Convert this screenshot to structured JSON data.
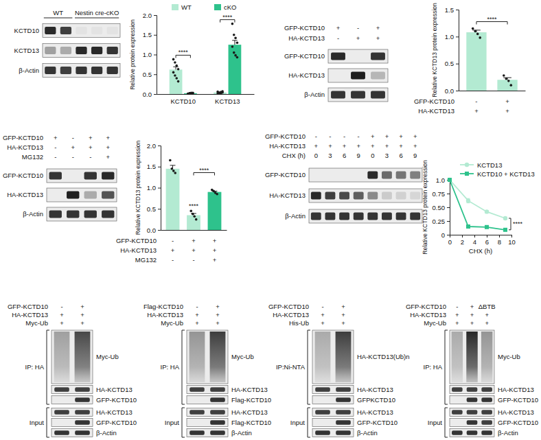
{
  "chart_data": [
    {
      "type": "bar",
      "y_label": "Relative protein expression",
      "categories": [
        "KCTD10",
        "KCTD13"
      ],
      "series": [
        {
          "name": "WT",
          "color": "#b3ead2",
          "values": [
            0.62,
            0.04
          ],
          "errors": [
            0.07,
            0.01
          ],
          "points": [
            [
              0.88,
              0.8,
              0.72,
              0.63,
              0.55,
              0.47,
              0.4,
              0.32
            ],
            [
              0.02,
              0.03,
              0.05,
              0.04,
              0.06,
              0.03,
              0.02,
              0.07
            ]
          ]
        },
        {
          "name": "cKO",
          "color": "#2ec28c",
          "values": [
            0.02,
            1.25
          ],
          "errors": [
            0.005,
            0.11
          ],
          "points": [
            [
              0.01,
              0.02,
              0.02,
              0.03,
              0.01,
              0.02,
              0.03,
              0.02
            ],
            [
              1.78,
              1.5,
              1.42,
              1.3,
              1.2,
              1.05,
              0.98,
              0.93
            ]
          ]
        }
      ],
      "ylim": [
        0,
        2
      ],
      "yticks": [
        {
          "value": 0,
          "label": "0.0"
        },
        0.5,
        {
          "value": 1,
          "label": "1.0"
        },
        1.5,
        {
          "value": 2,
          "label": "2.0"
        }
      ],
      "legend": "top",
      "annotations": [
        {
          "text": "****",
          "category": "KCTD10"
        },
        {
          "text": "****",
          "category": "KCTD13"
        }
      ]
    },
    {
      "type": "bar",
      "y_label": "Relative KCTD13 protein expression",
      "categories": [
        null,
        null
      ],
      "values": [
        1.08,
        0.2
      ],
      "errors": [
        0.04,
        0.04
      ],
      "points": [
        [
          1.15,
          1.1,
          1.05,
          0.98
        ],
        [
          0.28,
          0.22,
          0.18,
          0.1
        ]
      ],
      "colors": [
        "#b3ead2",
        "#b3ead2"
      ],
      "ylim": [
        0,
        1.5
      ],
      "yticks": [
        {
          "value": 0,
          "label": "0.0"
        },
        0.5,
        {
          "value": 1,
          "label": "1.0"
        },
        1.5
      ],
      "conditions": [
        {
          "label": "GFP-KCTD10",
          "signs": [
            "-",
            "+"
          ]
        },
        {
          "label": "HA-KCTD13",
          "signs": [
            "+",
            "+"
          ]
        }
      ],
      "annotations": [
        {
          "text": "****",
          "bars": [
            0,
            1
          ]
        }
      ]
    },
    {
      "type": "bar",
      "y_label": "Relative KCTD13 protein expression",
      "categories": [
        null,
        null,
        null
      ],
      "values": [
        1.45,
        0.35,
        0.9
      ],
      "errors": [
        0.08,
        0.04,
        0.02
      ],
      "points": [
        [
          1.65,
          1.45,
          1.4,
          1.35
        ],
        [
          0.45,
          0.38,
          0.32,
          0.25
        ],
        [
          0.95,
          0.92,
          0.88,
          0.85
        ]
      ],
      "colors": [
        "#b3ead2",
        "#b3ead2",
        "#2ec28c"
      ],
      "ylim": [
        0,
        2
      ],
      "yticks": [
        {
          "value": 0,
          "label": "0.0"
        },
        0.5,
        {
          "value": 1,
          "label": "1.0"
        },
        1.5,
        {
          "value": 2,
          "label": "2.0"
        }
      ],
      "conditions": [
        {
          "label": "GFP-KCTD10",
          "signs": [
            "-",
            "+",
            "+"
          ]
        },
        {
          "label": "HA-KCTD13",
          "signs": [
            "+",
            "+",
            "+"
          ]
        },
        {
          "label": "MG132",
          "signs": [
            "-",
            "-",
            "+"
          ]
        }
      ],
      "annotations": [
        {
          "text": "****",
          "bars": [
            1
          ]
        },
        {
          "text": "****",
          "bars": [
            1,
            2
          ]
        }
      ]
    },
    {
      "type": "line",
      "y_label": "Relative KCTD13 protein expression",
      "x_label": "CHX (h)",
      "x": [
        0,
        3,
        6,
        9
      ],
      "series": [
        {
          "name": "KCTD13",
          "color": "#b3ead2",
          "marker": "circle",
          "values": [
            1,
            0.62,
            0.42,
            0.3
          ],
          "errors": [
            0,
            0.04,
            0.02,
            0.02
          ]
        },
        {
          "name": "KCTD10 + KCTD13",
          "color": "#2ec28c",
          "marker": "square",
          "values": [
            1,
            0.15,
            0.14,
            0.09
          ],
          "errors": [
            0,
            0.01,
            0.01,
            0.01
          ]
        }
      ],
      "xlim": [
        0,
        10
      ],
      "xticks": [
        0,
        2,
        4,
        6,
        8,
        10
      ],
      "ylim": [
        0,
        1
      ],
      "yticks": [
        0,
        0.25,
        {
          "value": 0.5,
          "label": "0.50"
        },
        0.75,
        {
          "value": 1,
          "label": "1.0"
        }
      ],
      "legend": "top-right",
      "annotations": [
        {
          "text": "****",
          "x": 9
        }
      ]
    }
  ],
  "blots": [
    {
      "lane_groups": [
        "WT",
        "WT",
        "Nestin cre-cKO",
        "Nestin cre-cKO",
        "Nestin cre-cKO"
      ],
      "rows": [
        {
          "label": "KCTD10",
          "bands": [
            0.9,
            0.8,
            0.04,
            0.04,
            0.04
          ]
        },
        {
          "label": "KCTD13",
          "bands": [
            0.35,
            0.3,
            0.9,
            0.9,
            0.85
          ]
        },
        {
          "label": "β-Actin",
          "bands": [
            0.85,
            0.8,
            0.85,
            0.85,
            0.85
          ]
        }
      ]
    },
    {
      "conditions": [
        {
          "label": "GFP-KCTD10",
          "signs": [
            "+",
            "-",
            "+"
          ]
        },
        {
          "label": "HA-KCTD13",
          "signs": [
            "-",
            "+",
            "+"
          ]
        }
      ],
      "rows": [
        {
          "label": "GFP-KCTD10",
          "bands": [
            0.9,
            0,
            0.85
          ]
        },
        {
          "label": "HA-KCTD13",
          "bands": [
            0,
            0.95,
            0.25
          ]
        },
        {
          "label": "β-Actin",
          "bands": [
            0.85,
            0.85,
            0.85
          ]
        }
      ]
    },
    {
      "conditions": [
        {
          "label": "GFP-KCTD10",
          "signs": [
            "+",
            "-",
            "+",
            "+"
          ]
        },
        {
          "label": "HA-KCTD13",
          "signs": [
            "-",
            "+",
            "+",
            "+"
          ]
        },
        {
          "label": "MG132",
          "signs": [
            "-",
            "-",
            "-",
            "+"
          ]
        }
      ],
      "rows": [
        {
          "label": "GFP-KCTD10",
          "bands": [
            0.85,
            0,
            0.85,
            0.9
          ]
        },
        {
          "label": "HA-KCTD13",
          "bands": [
            0,
            0.95,
            0.3,
            0.7
          ]
        },
        {
          "label": "β-Actin",
          "bands": [
            0.85,
            0.85,
            0.85,
            0.85
          ]
        }
      ]
    },
    {
      "conditions": [
        {
          "label": "GFP-KCTD10",
          "signs": [
            "-",
            "-",
            "-",
            "-",
            "+",
            "+",
            "+",
            "+"
          ]
        },
        {
          "label": "HA-KCTD13",
          "signs": [
            "+",
            "+",
            "+",
            "+",
            "+",
            "+",
            "+",
            "+"
          ]
        },
        {
          "label": "CHX (h)",
          "signs": [
            "0",
            "3",
            "6",
            "9",
            "0",
            "3",
            "6",
            "9"
          ]
        }
      ],
      "rows": [
        {
          "label": "GFP-KCTD10",
          "bands": [
            0,
            0,
            0,
            0,
            0.9,
            0.6,
            0.55,
            0.5
          ]
        },
        {
          "label": "HA-KCTD13",
          "bands": [
            0.9,
            0.8,
            0.75,
            0.65,
            0.45,
            0.15,
            0.12,
            0.1
          ]
        },
        {
          "label": "β-Actin",
          "bands": [
            0.85,
            0.85,
            0.85,
            0.85,
            0.85,
            0.85,
            0.85,
            0.85
          ]
        }
      ]
    },
    {
      "conditions": [
        {
          "label": "GFP-KCTD10",
          "signs": [
            "-",
            "+"
          ]
        },
        {
          "label": "HA-KCTD13",
          "signs": [
            "+",
            "+"
          ]
        },
        {
          "label": "Myc-Ub",
          "signs": [
            "+",
            "+"
          ]
        }
      ],
      "sections": [
        {
          "label": "IP: HA",
          "rows": [
            {
              "label": "Myc-Ub",
              "type": "smear",
              "bands": [
                0.35,
                0.75
              ]
            },
            {
              "label": "HA-KCTD13",
              "bands": [
                0.8,
                0.8
              ]
            },
            {
              "label": "GFP-KCTD10",
              "bands": [
                0,
                0.85
              ]
            }
          ]
        },
        {
          "label": "Input",
          "rows": [
            {
              "label": "HA-KCTD13",
              "bands": [
                0.8,
                0.8
              ]
            },
            {
              "label": "GFP-KCTD10",
              "bands": [
                0,
                0.85
              ]
            },
            {
              "label": "β-Actin",
              "bands": [
                0.85,
                0.85
              ]
            }
          ]
        }
      ]
    },
    {
      "conditions": [
        {
          "label": "Flag-KCTD10",
          "signs": [
            "-",
            "+"
          ]
        },
        {
          "label": "HA-KCTD13",
          "signs": [
            "+",
            "+"
          ]
        },
        {
          "label": "Myc-Ub",
          "signs": [
            "+",
            "+"
          ]
        }
      ],
      "sections": [
        {
          "label": "IP: HA",
          "rows": [
            {
              "label": "Myc-Ub",
              "type": "smear",
              "bands": [
                0.4,
                0.8
              ]
            },
            {
              "label": "HA-KCTD13",
              "bands": [
                0.8,
                0.8
              ]
            },
            {
              "label": "Flag-KCTD10",
              "bands": [
                0,
                0.85
              ]
            }
          ]
        },
        {
          "label": "Input",
          "rows": [
            {
              "label": "HA-KCTD13",
              "bands": [
                0.8,
                0.8
              ]
            },
            {
              "label": "Flag-KCTD10",
              "bands": [
                0,
                0.85
              ]
            },
            {
              "label": "β-Actin",
              "bands": [
                0.85,
                0.85
              ]
            }
          ]
        }
      ]
    },
    {
      "conditions": [
        {
          "label": "GFP-KCTD10",
          "signs": [
            "-",
            "+"
          ]
        },
        {
          "label": "HA-KCTD13",
          "signs": [
            "+",
            "+"
          ]
        },
        {
          "label": "His-Ub",
          "signs": [
            "+",
            "+"
          ]
        }
      ],
      "sections": [
        {
          "label": "IP:Ni-NTA",
          "rows": [
            {
              "label": "HA-KCTD13(Ub)n",
              "type": "smear",
              "bands": [
                0.3,
                0.8
              ]
            },
            {
              "label": "HA-KCTD13",
              "bands": [
                0.8,
                0.8
              ]
            },
            {
              "label": "GFPKCTD10",
              "bands": [
                0,
                0.85
              ]
            }
          ]
        },
        {
          "label": "Input",
          "rows": [
            {
              "label": "HA-KCTD13",
              "bands": [
                0.8,
                0.8
              ]
            },
            {
              "label": "GFP-KCTD10",
              "bands": [
                0,
                0.85
              ]
            },
            {
              "label": "β-Actin",
              "bands": [
                0.85,
                0.85
              ]
            }
          ]
        }
      ]
    },
    {
      "conditions": [
        {
          "label": "GFP-KCTD10",
          "signs": [
            "-",
            "+",
            "ΔBTB"
          ]
        },
        {
          "label": "HA-KCTD13",
          "signs": [
            "+",
            "+",
            "+"
          ]
        },
        {
          "label": "Myc-Ub",
          "signs": [
            "+",
            "+",
            "+"
          ]
        }
      ],
      "sections": [
        {
          "label": "IP: HA",
          "rows": [
            {
              "label": "Myc-Ub",
              "type": "smear",
              "bands": [
                0.3,
                0.9,
                0.4
              ]
            },
            {
              "label": "HA-KCTD13",
              "bands": [
                0.8,
                0.8,
                0.8
              ]
            },
            {
              "label": "GFP-KCTD10",
              "bands": [
                0,
                0.85,
                0.85
              ]
            }
          ]
        },
        {
          "label": "Input",
          "rows": [
            {
              "label": "HA-KCTD13",
              "bands": [
                0.8,
                0.8,
                0.8
              ]
            },
            {
              "label": "GFP-KCTD10",
              "bands": [
                0,
                0.85,
                0.8
              ]
            },
            {
              "label": "β-Actin",
              "bands": [
                0.85,
                0.85,
                0.85
              ]
            }
          ]
        }
      ]
    }
  ]
}
